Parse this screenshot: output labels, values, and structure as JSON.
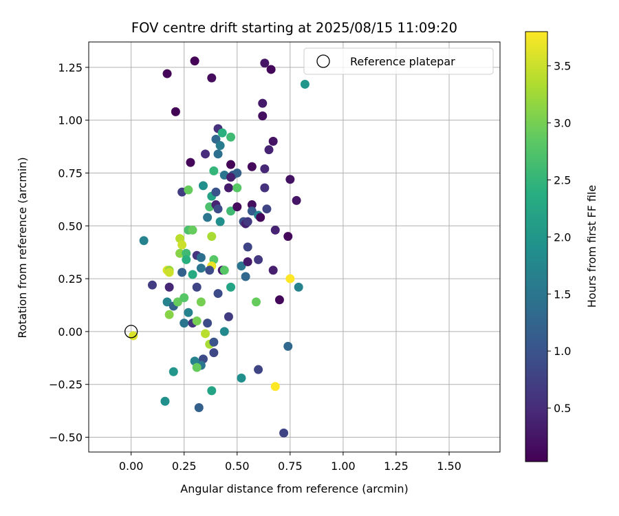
{
  "chart_data": {
    "type": "scatter",
    "title": "FOV centre drift starting at 2025/08/15 11:09:20",
    "xlabel": "Angular distance from reference (arcmin)",
    "ylabel": "Rotation from reference (arcmin)",
    "xlim": [
      -0.2,
      1.74
    ],
    "ylim": [
      -0.57,
      1.37
    ],
    "xticks": [
      0.0,
      0.25,
      0.5,
      0.75,
      1.0,
      1.25,
      1.5
    ],
    "xtick_labels": [
      "0.00",
      "0.25",
      "0.50",
      "0.75",
      "1.00",
      "1.25",
      "1.50"
    ],
    "yticks": [
      -0.5,
      -0.25,
      0.0,
      0.25,
      0.5,
      0.75,
      1.0,
      1.25
    ],
    "ytick_labels": [
      "−0.50",
      "−0.25",
      "0.00",
      "0.25",
      "0.50",
      "0.75",
      "1.00",
      "1.25"
    ],
    "grid": true,
    "legend": {
      "placement": "top-right",
      "entries": [
        "Reference platepar"
      ]
    },
    "reference_point": {
      "x": 0.0,
      "y": 0.0,
      "marker": "hollow-circle",
      "color": "#000000"
    },
    "colorbar": {
      "label": "Hours from first FF file",
      "range": [
        0.03,
        3.8
      ],
      "ticks": [
        0.5,
        1.0,
        1.5,
        2.0,
        2.5,
        3.0,
        3.5
      ],
      "tick_labels": [
        "0.5",
        "1.0",
        "1.5",
        "2.0",
        "2.5",
        "3.0",
        "3.5"
      ],
      "colormap": "viridis"
    },
    "points": [
      {
        "x": 0.3,
        "y": 1.28,
        "h": 0.05
      },
      {
        "x": 0.17,
        "y": 1.22,
        "h": 0.08
      },
      {
        "x": 0.38,
        "y": 1.2,
        "h": 0.15
      },
      {
        "x": 0.21,
        "y": 1.04,
        "h": 0.06
      },
      {
        "x": 0.63,
        "y": 1.27,
        "h": 0.25
      },
      {
        "x": 0.66,
        "y": 1.24,
        "h": 0.1
      },
      {
        "x": 0.62,
        "y": 1.08,
        "h": 0.3
      },
      {
        "x": 0.62,
        "y": 1.02,
        "h": 0.18
      },
      {
        "x": 0.67,
        "y": 0.9,
        "h": 0.22
      },
      {
        "x": 0.65,
        "y": 0.86,
        "h": 0.4
      },
      {
        "x": 0.41,
        "y": 0.96,
        "h": 0.55
      },
      {
        "x": 0.4,
        "y": 0.91,
        "h": 1.3
      },
      {
        "x": 0.42,
        "y": 0.88,
        "h": 1.6
      },
      {
        "x": 0.43,
        "y": 0.94,
        "h": 2.4
      },
      {
        "x": 0.47,
        "y": 0.92,
        "h": 2.6
      },
      {
        "x": 0.35,
        "y": 0.84,
        "h": 0.5
      },
      {
        "x": 0.41,
        "y": 0.84,
        "h": 1.4
      },
      {
        "x": 0.47,
        "y": 0.79,
        "h": 0.05
      },
      {
        "x": 0.57,
        "y": 0.78,
        "h": 0.12
      },
      {
        "x": 0.63,
        "y": 0.77,
        "h": 0.45
      },
      {
        "x": 0.75,
        "y": 0.72,
        "h": 0.2
      },
      {
        "x": 0.28,
        "y": 0.8,
        "h": 0.09
      },
      {
        "x": 0.39,
        "y": 0.76,
        "h": 2.5
      },
      {
        "x": 0.44,
        "y": 0.74,
        "h": 1.5
      },
      {
        "x": 0.48,
        "y": 0.74,
        "h": 1.1
      },
      {
        "x": 0.5,
        "y": 0.75,
        "h": 1.2
      },
      {
        "x": 0.47,
        "y": 0.73,
        "h": 0.35
      },
      {
        "x": 0.46,
        "y": 0.68,
        "h": 0.3
      },
      {
        "x": 0.5,
        "y": 0.68,
        "h": 2.8
      },
      {
        "x": 0.63,
        "y": 0.68,
        "h": 0.55
      },
      {
        "x": 0.24,
        "y": 0.66,
        "h": 0.7
      },
      {
        "x": 0.27,
        "y": 0.67,
        "h": 2.9
      },
      {
        "x": 0.34,
        "y": 0.69,
        "h": 1.9
      },
      {
        "x": 0.38,
        "y": 0.64,
        "h": 2.2
      },
      {
        "x": 0.4,
        "y": 0.66,
        "h": 1.0
      },
      {
        "x": 0.37,
        "y": 0.59,
        "h": 2.7
      },
      {
        "x": 0.4,
        "y": 0.6,
        "h": 0.4
      },
      {
        "x": 0.41,
        "y": 0.58,
        "h": 0.9
      },
      {
        "x": 0.47,
        "y": 0.57,
        "h": 2.6
      },
      {
        "x": 0.5,
        "y": 0.59,
        "h": 0.15
      },
      {
        "x": 0.57,
        "y": 0.6,
        "h": 0.18
      },
      {
        "x": 0.57,
        "y": 0.57,
        "h": 1.1
      },
      {
        "x": 0.64,
        "y": 0.58,
        "h": 0.8
      },
      {
        "x": 0.78,
        "y": 0.62,
        "h": 0.25
      },
      {
        "x": 0.6,
        "y": 0.55,
        "h": 1.7
      },
      {
        "x": 0.61,
        "y": 0.54,
        "h": 0.1
      },
      {
        "x": 0.53,
        "y": 0.52,
        "h": 0.95
      },
      {
        "x": 0.54,
        "y": 0.51,
        "h": 0.35
      },
      {
        "x": 0.55,
        "y": 0.52,
        "h": 0.65
      },
      {
        "x": 0.36,
        "y": 0.54,
        "h": 1.5
      },
      {
        "x": 0.42,
        "y": 0.52,
        "h": 1.9
      },
      {
        "x": 0.27,
        "y": 0.48,
        "h": 2.7
      },
      {
        "x": 0.29,
        "y": 0.48,
        "h": 2.9
      },
      {
        "x": 0.06,
        "y": 0.43,
        "h": 1.7
      },
      {
        "x": 0.23,
        "y": 0.44,
        "h": 3.4
      },
      {
        "x": 0.24,
        "y": 0.41,
        "h": 3.5
      },
      {
        "x": 0.23,
        "y": 0.37,
        "h": 3.1
      },
      {
        "x": 0.26,
        "y": 0.37,
        "h": 2.6
      },
      {
        "x": 0.26,
        "y": 0.34,
        "h": 2.4
      },
      {
        "x": 0.31,
        "y": 0.36,
        "h": 0.6
      },
      {
        "x": 0.33,
        "y": 0.35,
        "h": 1.4
      },
      {
        "x": 0.38,
        "y": 0.45,
        "h": 3.3
      },
      {
        "x": 0.39,
        "y": 0.34,
        "h": 2.8
      },
      {
        "x": 0.38,
        "y": 0.31,
        "h": 3.7
      },
      {
        "x": 0.37,
        "y": 0.29,
        "h": 0.9
      },
      {
        "x": 0.33,
        "y": 0.3,
        "h": 1.5
      },
      {
        "x": 0.43,
        "y": 0.29,
        "h": 0.3
      },
      {
        "x": 0.44,
        "y": 0.29,
        "h": 2.8
      },
      {
        "x": 0.52,
        "y": 0.31,
        "h": 1.5
      },
      {
        "x": 0.55,
        "y": 0.33,
        "h": 0.3
      },
      {
        "x": 0.55,
        "y": 0.4,
        "h": 0.8
      },
      {
        "x": 0.6,
        "y": 0.34,
        "h": 0.65
      },
      {
        "x": 0.68,
        "y": 0.48,
        "h": 0.4
      },
      {
        "x": 0.74,
        "y": 0.45,
        "h": 0.12
      },
      {
        "x": 0.67,
        "y": 0.29,
        "h": 0.35
      },
      {
        "x": 0.54,
        "y": 0.26,
        "h": 1.3
      },
      {
        "x": 0.75,
        "y": 0.25,
        "h": 3.8
      },
      {
        "x": 0.79,
        "y": 0.21,
        "h": 1.7
      },
      {
        "x": 0.47,
        "y": 0.21,
        "h": 2.2
      },
      {
        "x": 0.17,
        "y": 0.29,
        "h": 3.6
      },
      {
        "x": 0.18,
        "y": 0.29,
        "h": 3.2
      },
      {
        "x": 0.18,
        "y": 0.28,
        "h": 3.5
      },
      {
        "x": 0.24,
        "y": 0.28,
        "h": 1.2
      },
      {
        "x": 0.29,
        "y": 0.27,
        "h": 2.3
      },
      {
        "x": 0.1,
        "y": 0.22,
        "h": 0.7
      },
      {
        "x": 0.18,
        "y": 0.21,
        "h": 0.45
      },
      {
        "x": 0.31,
        "y": 0.21,
        "h": 0.8
      },
      {
        "x": 0.41,
        "y": 0.18,
        "h": 0.9
      },
      {
        "x": 0.17,
        "y": 0.14,
        "h": 1.7
      },
      {
        "x": 0.2,
        "y": 0.12,
        "h": 1.2
      },
      {
        "x": 0.22,
        "y": 0.14,
        "h": 2.9
      },
      {
        "x": 0.25,
        "y": 0.16,
        "h": 2.8
      },
      {
        "x": 0.33,
        "y": 0.14,
        "h": 3.0
      },
      {
        "x": 0.18,
        "y": 0.08,
        "h": 3.1
      },
      {
        "x": 0.27,
        "y": 0.09,
        "h": 1.7
      },
      {
        "x": 0.46,
        "y": 0.07,
        "h": 0.7
      },
      {
        "x": 0.59,
        "y": 0.14,
        "h": 2.9
      },
      {
        "x": 0.7,
        "y": 0.15,
        "h": 0.1
      },
      {
        "x": 0.25,
        "y": 0.04,
        "h": 1.5
      },
      {
        "x": 0.29,
        "y": 0.04,
        "h": 0.6
      },
      {
        "x": 0.31,
        "y": 0.05,
        "h": 3.0
      },
      {
        "x": 0.36,
        "y": 0.04,
        "h": 0.9
      },
      {
        "x": 0.35,
        "y": -0.01,
        "h": 3.4
      },
      {
        "x": 0.44,
        "y": 0.0,
        "h": 1.8
      },
      {
        "x": 0.01,
        "y": -0.02,
        "h": 3.6
      },
      {
        "x": 0.37,
        "y": -0.06,
        "h": 3.3
      },
      {
        "x": 0.39,
        "y": -0.05,
        "h": 1.0
      },
      {
        "x": 0.74,
        "y": -0.07,
        "h": 1.3
      },
      {
        "x": 0.39,
        "y": -0.1,
        "h": 0.85
      },
      {
        "x": 0.34,
        "y": -0.13,
        "h": 0.9
      },
      {
        "x": 0.3,
        "y": -0.14,
        "h": 1.7
      },
      {
        "x": 0.33,
        "y": -0.16,
        "h": 1.5
      },
      {
        "x": 0.31,
        "y": -0.17,
        "h": 2.9
      },
      {
        "x": 0.2,
        "y": -0.19,
        "h": 2.0
      },
      {
        "x": 0.52,
        "y": -0.22,
        "h": 1.9
      },
      {
        "x": 0.6,
        "y": -0.18,
        "h": 0.8
      },
      {
        "x": 0.68,
        "y": -0.26,
        "h": 3.8
      },
      {
        "x": 0.38,
        "y": -0.28,
        "h": 2.2
      },
      {
        "x": 0.16,
        "y": -0.33,
        "h": 1.9
      },
      {
        "x": 0.32,
        "y": -0.36,
        "h": 1.2
      },
      {
        "x": 0.72,
        "y": -0.48,
        "h": 0.8
      },
      {
        "x": 0.82,
        "y": 1.17,
        "h": 2.0
      }
    ]
  }
}
